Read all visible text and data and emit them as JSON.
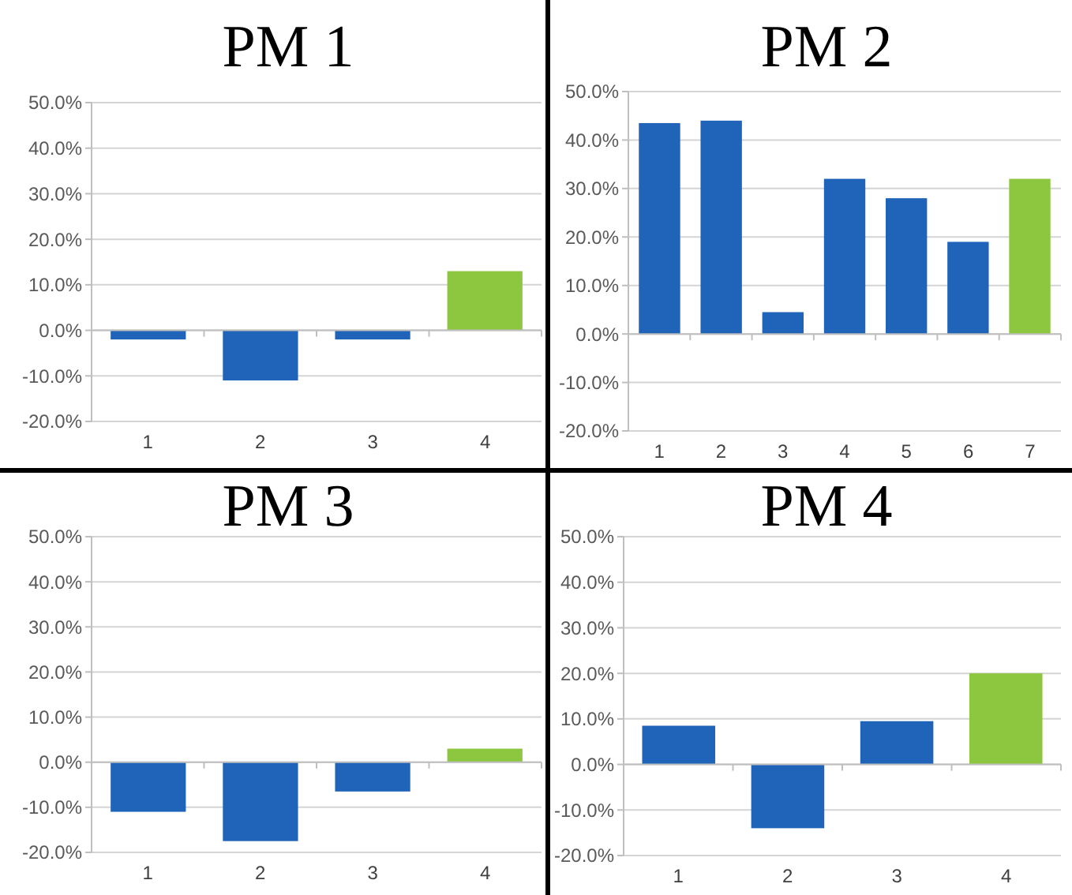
{
  "chart_data": [
    {
      "type": "bar",
      "title": "PM 1",
      "categories": [
        "1",
        "2",
        "3",
        "4"
      ],
      "values": [
        -2,
        -11,
        -2,
        13
      ],
      "colors": [
        "#1f64b8",
        "#1f64b8",
        "#1f64b8",
        "#8dc63f"
      ],
      "ylim": [
        -20,
        50
      ],
      "yticks": [
        {
          "value": -20,
          "label": "-20.0%"
        },
        {
          "value": -10,
          "label": "-10.0%"
        },
        {
          "value": 0,
          "label": "0.0%"
        },
        {
          "value": 10,
          "label": "10.0%"
        },
        {
          "value": 20,
          "label": "20.0%"
        },
        {
          "value": 30,
          "label": "30.0%"
        },
        {
          "value": 40,
          "label": "40.0%"
        },
        {
          "value": 50,
          "label": "50.0%"
        }
      ],
      "grid": "y"
    },
    {
      "type": "bar",
      "title": "PM 2",
      "categories": [
        "1",
        "2",
        "3",
        "4",
        "5",
        "6",
        "7"
      ],
      "values": [
        43.5,
        44,
        4.5,
        32,
        28,
        19,
        32
      ],
      "colors": [
        "#1f64b8",
        "#1f64b8",
        "#1f64b8",
        "#1f64b8",
        "#1f64b8",
        "#1f64b8",
        "#8dc63f"
      ],
      "ylim": [
        -20,
        50
      ],
      "yticks": [
        {
          "value": -20,
          "label": "-20.0%"
        },
        {
          "value": -10,
          "label": "-10.0%"
        },
        {
          "value": 0,
          "label": "0.0%"
        },
        {
          "value": 10,
          "label": "10.0%"
        },
        {
          "value": 20,
          "label": "20.0%"
        },
        {
          "value": 30,
          "label": "30.0%"
        },
        {
          "value": 40,
          "label": "40.0%"
        },
        {
          "value": 50,
          "label": "50.0%"
        }
      ],
      "grid": "y"
    },
    {
      "type": "bar",
      "title": "PM 3",
      "categories": [
        "1",
        "2",
        "3",
        "4"
      ],
      "values": [
        -11,
        -17.5,
        -6.5,
        3
      ],
      "colors": [
        "#1f64b8",
        "#1f64b8",
        "#1f64b8",
        "#8dc63f"
      ],
      "ylim": [
        -20,
        50
      ],
      "yticks": [
        {
          "value": -20,
          "label": "-20.0%"
        },
        {
          "value": -10,
          "label": "-10.0%"
        },
        {
          "value": 0,
          "label": "0.0%"
        },
        {
          "value": 10,
          "label": "10.0%"
        },
        {
          "value": 20,
          "label": "20.0%"
        },
        {
          "value": 30,
          "label": "30.0%"
        },
        {
          "value": 40,
          "label": "40.0%"
        },
        {
          "value": 50,
          "label": "50.0%"
        }
      ],
      "grid": "y"
    },
    {
      "type": "bar",
      "title": "PM 4",
      "categories": [
        "1",
        "2",
        "3",
        "4"
      ],
      "values": [
        8.5,
        -14,
        9.5,
        20
      ],
      "colors": [
        "#1f64b8",
        "#1f64b8",
        "#1f64b8",
        "#8dc63f"
      ],
      "ylim": [
        -20,
        50
      ],
      "yticks": [
        {
          "value": -20,
          "label": "-20.0%"
        },
        {
          "value": -10,
          "label": "-10.0%"
        },
        {
          "value": 0,
          "label": "0.0%"
        },
        {
          "value": 10,
          "label": "10.0%"
        },
        {
          "value": 20,
          "label": "20.0%"
        },
        {
          "value": 30,
          "label": "30.0%"
        },
        {
          "value": 40,
          "label": "40.0%"
        },
        {
          "value": 50,
          "label": "50.0%"
        }
      ],
      "grid": "y"
    }
  ]
}
